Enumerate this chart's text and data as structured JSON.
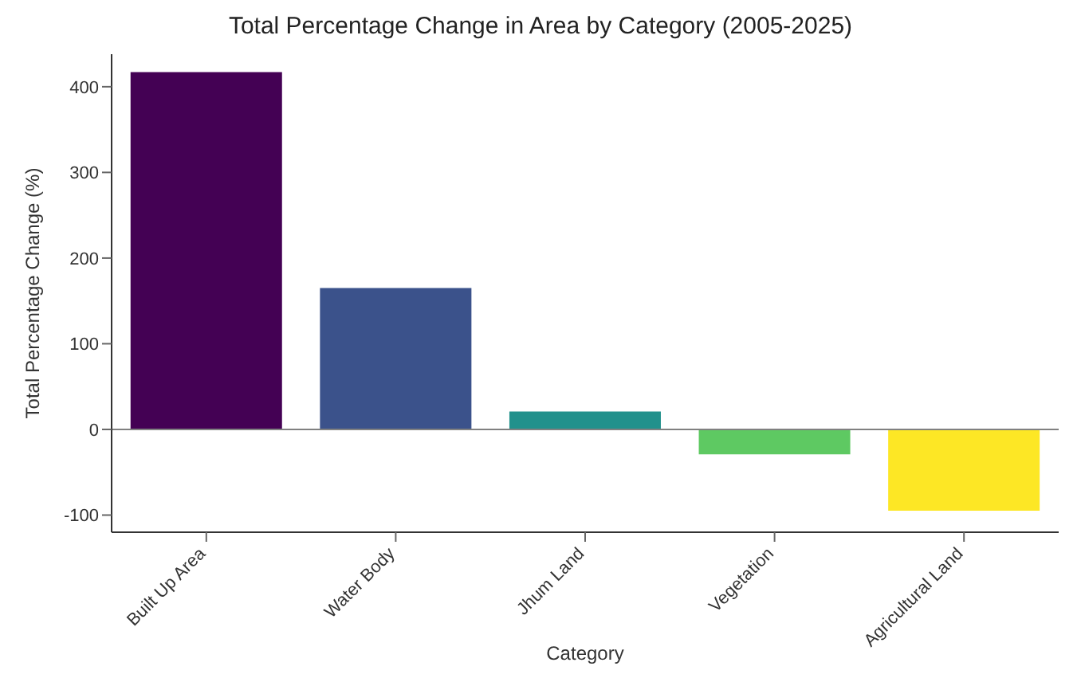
{
  "chart_data": {
    "type": "bar",
    "title": "Total Percentage Change in Area by Category (2005-2025)",
    "xlabel": "Category",
    "ylabel": "Total Percentage Change (%)",
    "categories": [
      "Built Up Area",
      "Water Body",
      "Jhum Land",
      "Vegetation",
      "Agricultural Land"
    ],
    "values": [
      417,
      165,
      21,
      -29,
      -95
    ],
    "colors": [
      "#440154",
      "#3b528b",
      "#21918c",
      "#5ec962",
      "#fde725"
    ],
    "ylim": [
      -120,
      438
    ],
    "yticks": [
      -100,
      0,
      100,
      200,
      300,
      400
    ],
    "ref_lines": [
      {
        "axis": "y",
        "value": 0,
        "color": "#808080"
      }
    ],
    "grid": false
  }
}
